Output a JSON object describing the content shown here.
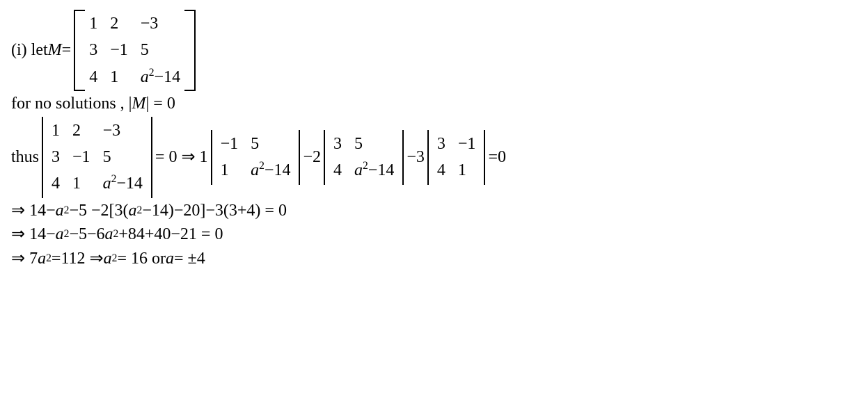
{
  "line1_prefix": "(i) let ",
  "M": "M",
  "eq": " = ",
  "matA": {
    "r1c1": "1",
    "r1c2": "2",
    "r1c3": "−3",
    "r2c1": "3",
    "r2c2": "−1",
    "r2c3": "5",
    "r3c1": "4",
    "r3c2": "1",
    "r3c3_a": "a",
    "r3c3_exp": "2",
    "r3c3_b": "−14"
  },
  "line2_a": "for no solutions , |",
  "line2_M": "M",
  "line2_b": "| = 0",
  "line3_prefix": "thus   ",
  "detA": {
    "r1c1": "1",
    "r1c2": "2",
    "r1c3": "−3",
    "r2c1": "3",
    "r2c2": "−1",
    "r2c3": "5",
    "r3c1": "4",
    "r3c2": "1",
    "r3c3_a": "a",
    "r3c3_exp": "2",
    "r3c3_b": "−14"
  },
  "line3_mid": "= 0  ⇒ 1",
  "detB": {
    "r1c1": "−1",
    "r1c2": "5",
    "r2c1": "1",
    "r2c2_a": "a",
    "r2c2_exp": "2",
    "r2c2_b": "−14"
  },
  "line3_m2": "−2",
  "detC": {
    "r1c1": "3",
    "r1c2": "5",
    "r2c1": "4",
    "r2c2_a": "a",
    "r2c2_exp": "2",
    "r2c2_b": "−14"
  },
  "line3_m3": "−3",
  "detD": {
    "r1c1": "3",
    "r1c2": "−1",
    "r2c1": "4",
    "r2c2": "1"
  },
  "line3_end": "=0",
  "line4_a": "⇒  14−",
  "line4_b": "a",
  "line4_c": "2",
  "line4_d": "−5 −2[3(",
  "line4_e": "a",
  "line4_f": "2",
  "line4_g": "−14)−20]−3(3+4) = 0",
  "line5_a": "⇒ 14−",
  "line5_b": "a",
  "line5_c": "2",
  "line5_d": "−5−6",
  "line5_e": "a",
  "line5_f": "2",
  "line5_g": "+84+40−21 = 0",
  "line6_a": "⇒  7",
  "line6_b": "a",
  "line6_c": "2",
  "line6_d": "=112  ⇒ ",
  "line6_e": "a",
  "line6_f": "2",
  "line6_g": " = 16 or ",
  "line6_h": "a",
  "line6_i": " = ±4"
}
